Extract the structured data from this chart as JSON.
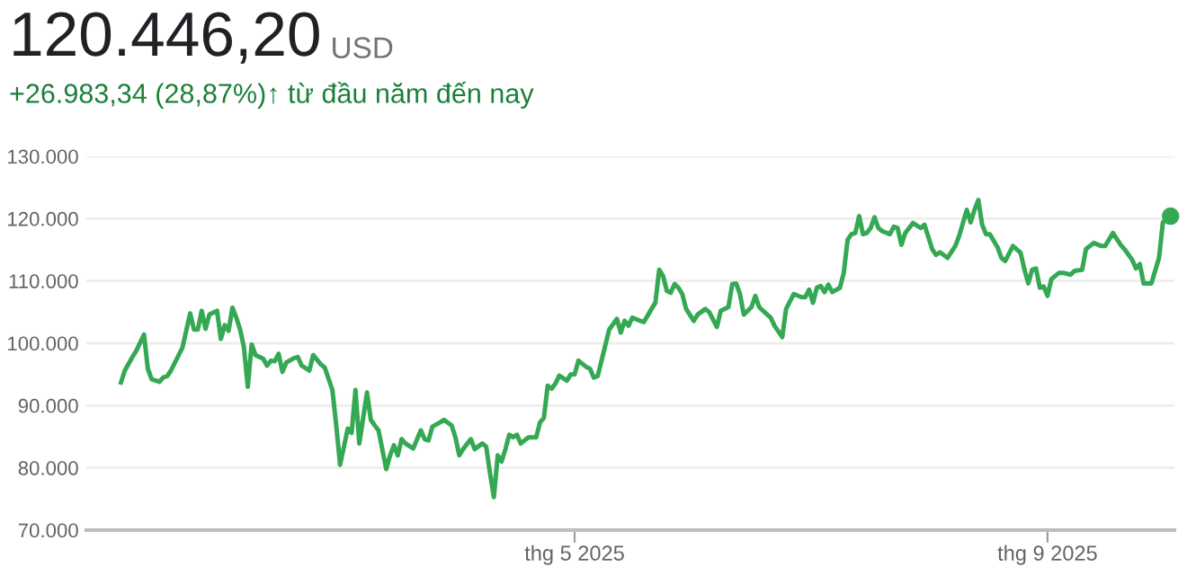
{
  "chart_data": {
    "type": "line",
    "title": "120.446,20",
    "subtitle": "+26.983,34 (28,87%)↑ từ đầu năm đến nay",
    "annotations": [
      "USD"
    ],
    "x": [
      "2025-01-03",
      "2025-01-04",
      "2025-01-06",
      "2025-01-07",
      "2025-01-09",
      "2025-01-10",
      "2025-01-11",
      "2025-01-13",
      "2025-01-14",
      "2025-01-15",
      "2025-01-16",
      "2025-01-19",
      "2025-01-21",
      "2025-01-22",
      "2025-01-23",
      "2025-01-24",
      "2025-01-25",
      "2025-01-26",
      "2025-01-28",
      "2025-01-29",
      "2025-01-30",
      "2025-01-31",
      "2025-02-01",
      "2025-02-02",
      "2025-02-03",
      "2025-02-04",
      "2025-02-05",
      "2025-02-06",
      "2025-02-07",
      "2025-02-08",
      "2025-02-09",
      "2025-02-10",
      "2025-02-11",
      "2025-02-12",
      "2025-02-13",
      "2025-02-14",
      "2025-02-15",
      "2025-02-17",
      "2025-02-18",
      "2025-02-19",
      "2025-02-21",
      "2025-02-22",
      "2025-02-24",
      "2025-02-25",
      "2025-02-27",
      "2025-02-28",
      "2025-03-01",
      "2025-03-03",
      "2025-03-04",
      "2025-03-05",
      "2025-03-06",
      "2025-03-08",
      "2025-03-09",
      "2025-03-10",
      "2025-03-11",
      "2025-03-13",
      "2025-03-14",
      "2025-03-15",
      "2025-03-16",
      "2025-03-17",
      "2025-03-18",
      "2025-03-20",
      "2025-03-22",
      "2025-03-23",
      "2025-03-24",
      "2025-03-25",
      "2025-03-27",
      "2025-03-28",
      "2025-03-30",
      "2025-03-31",
      "2025-04-01",
      "2025-04-02",
      "2025-04-04",
      "2025-04-05",
      "2025-04-07",
      "2025-04-08",
      "2025-04-09",
      "2025-04-10",
      "2025-04-11",
      "2025-04-12",
      "2025-04-13",
      "2025-04-14",
      "2025-04-15",
      "2025-04-16",
      "2025-04-17",
      "2025-04-18",
      "2025-04-19",
      "2025-04-21",
      "2025-04-22",
      "2025-04-23",
      "2025-04-24",
      "2025-04-25",
      "2025-04-26",
      "2025-04-27",
      "2025-04-29",
      "2025-04-30",
      "2025-05-01",
      "2025-05-02",
      "2025-05-04",
      "2025-05-05",
      "2025-05-06",
      "2025-05-07",
      "2025-05-08",
      "2025-05-10",
      "2025-05-12",
      "2025-05-13",
      "2025-05-14",
      "2025-05-15",
      "2025-05-16",
      "2025-05-18",
      "2025-05-19",
      "2025-05-21",
      "2025-05-22",
      "2025-05-23",
      "2025-05-24",
      "2025-05-25",
      "2025-05-26",
      "2025-05-27",
      "2025-05-28",
      "2025-05-29",
      "2025-05-30",
      "2025-06-01",
      "2025-06-02",
      "2025-06-04",
      "2025-06-05",
      "2025-06-07",
      "2025-06-08",
      "2025-06-10",
      "2025-06-11",
      "2025-06-12",
      "2025-06-13",
      "2025-06-14",
      "2025-06-15",
      "2025-06-16",
      "2025-06-17",
      "2025-06-18",
      "2025-06-19",
      "2025-06-21",
      "2025-06-22",
      "2025-06-24",
      "2025-06-25",
      "2025-06-27",
      "2025-06-29",
      "2025-06-30",
      "2025-07-01",
      "2025-07-02",
      "2025-07-03",
      "2025-07-04",
      "2025-07-05",
      "2025-07-06",
      "2025-07-07",
      "2025-07-09",
      "2025-07-10",
      "2025-07-11",
      "2025-07-12",
      "2025-07-13",
      "2025-07-14",
      "2025-07-15",
      "2025-07-16",
      "2025-07-17",
      "2025-07-18",
      "2025-07-19",
      "2025-07-20",
      "2025-07-22",
      "2025-07-23",
      "2025-07-24",
      "2025-07-25",
      "2025-07-26",
      "2025-07-28",
      "2025-07-30",
      "2025-07-31",
      "2025-08-02",
      "2025-08-03",
      "2025-08-04",
      "2025-08-06",
      "2025-08-08",
      "2025-08-09",
      "2025-08-11",
      "2025-08-12",
      "2025-08-13",
      "2025-08-14",
      "2025-08-15",
      "2025-08-16",
      "2025-08-17",
      "2025-08-19",
      "2025-08-20",
      "2025-08-21",
      "2025-08-23",
      "2025-08-25",
      "2025-08-26",
      "2025-08-27",
      "2025-08-28",
      "2025-08-29",
      "2025-08-30",
      "2025-08-31",
      "2025-09-01",
      "2025-09-02",
      "2025-09-04",
      "2025-09-05",
      "2025-09-07",
      "2025-09-08",
      "2025-09-10",
      "2025-09-11",
      "2025-09-13",
      "2025-09-15",
      "2025-09-16",
      "2025-09-18",
      "2025-09-20",
      "2025-09-21",
      "2025-09-23",
      "2025-09-24",
      "2025-09-25",
      "2025-09-26",
      "2025-09-28",
      "2025-09-30",
      "2025-10-01",
      "2025-10-03"
    ],
    "series": [
      {
        "color": "#34a853",
        "values": [
          93700,
          95600,
          97800,
          98800,
          101400,
          95900,
          94200,
          93800,
          94500,
          94700,
          95600,
          99300,
          104800,
          102200,
          102200,
          105200,
          102300,
          104600,
          105200,
          100700,
          102900,
          102000,
          105700,
          104100,
          102200,
          99300,
          93000,
          99800,
          98100,
          97800,
          97500,
          96400,
          97200,
          97100,
          98300,
          95400,
          96900,
          97600,
          97800,
          96400,
          95600,
          98100,
          96600,
          96100,
          92500,
          86800,
          80500,
          86300,
          85600,
          92500,
          83900,
          92100,
          87700,
          86800,
          86000,
          79800,
          82000,
          83600,
          82000,
          84600,
          83900,
          83100,
          86000,
          84600,
          84400,
          86600,
          87300,
          87700,
          86800,
          84900,
          82000,
          83000,
          84600,
          83000,
          83900,
          83400,
          79100,
          75300,
          82000,
          81000,
          83000,
          85300,
          84900,
          85300,
          83900,
          84400,
          84900,
          84900,
          87300,
          88000,
          93200,
          92700,
          93500,
          94800,
          94000,
          95000,
          95000,
          97200,
          96200,
          95900,
          94500,
          94700,
          97200,
          102200,
          103900,
          101700,
          103600,
          102800,
          104100,
          103600,
          103400,
          105500,
          106500,
          111800,
          110800,
          108400,
          108100,
          109500,
          108900,
          107900,
          105500,
          103600,
          104600,
          105500,
          105000,
          102600,
          105200,
          105800,
          109500,
          109600,
          107900,
          104600,
          105200,
          105800,
          107600,
          105800,
          105200,
          104100,
          102800,
          101000,
          105500,
          107900,
          107400,
          107400,
          108600,
          106500,
          108900,
          109200,
          108200,
          109400,
          108200,
          108900,
          111300,
          116600,
          117500,
          117700,
          120400,
          117500,
          117700,
          118500,
          120200,
          118500,
          118000,
          117500,
          118700,
          118500,
          115800,
          117700,
          119300,
          118500,
          119000,
          115100,
          114200,
          114600,
          113700,
          115600,
          117200,
          121400,
          119400,
          121400,
          123000,
          119000,
          117500,
          117500,
          115400,
          113700,
          113200,
          115600,
          114500,
          111800,
          109600,
          111800,
          112000,
          108900,
          109100,
          107600,
          110300,
          111300,
          111300,
          111000,
          111600,
          111800,
          115100,
          116100,
          115600,
          115600,
          117700,
          115800,
          115100,
          113400,
          112000,
          112700,
          109600,
          109600,
          113700,
          119400,
          120400
        ]
      }
    ],
    "xlim": [
      "2024-12-25",
      "2025-10-04"
    ],
    "xticks": [
      {
        "value": "2025-05-01",
        "label": "thg 5 2025"
      },
      {
        "value": "2025-09-01",
        "label": "thg 9 2025"
      }
    ],
    "ylim": [
      70000,
      130000
    ],
    "yticks": [
      {
        "value": 70000,
        "label": "70.000"
      },
      {
        "value": 80000,
        "label": "80.000"
      },
      {
        "value": 90000,
        "label": "90.000"
      },
      {
        "value": 100000,
        "label": "100.000"
      },
      {
        "value": 110000,
        "label": "110.000"
      },
      {
        "value": 120000,
        "label": "120.000"
      },
      {
        "value": 130000,
        "label": "130.000"
      }
    ],
    "grid": "y"
  }
}
